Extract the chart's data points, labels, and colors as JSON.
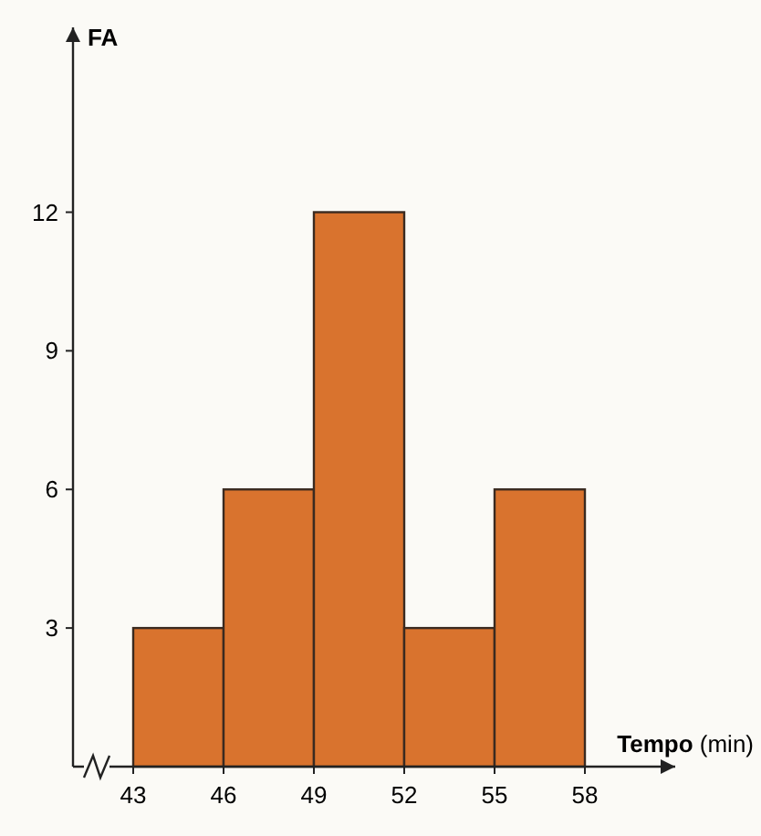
{
  "chart_data": {
    "type": "histogram",
    "xlabel": "Tempo (min)",
    "ylabel": "FA",
    "bins": [
      43,
      46,
      49,
      52,
      55,
      58
    ],
    "values": [
      3,
      6,
      12,
      3,
      6
    ],
    "color": "#d9732e",
    "xlim": [
      41,
      61
    ],
    "ylim": [
      0,
      16
    ],
    "xticks": [
      43,
      46,
      49,
      52,
      55,
      58
    ],
    "yticks": [
      3,
      6,
      9,
      12
    ],
    "grid": false
  }
}
